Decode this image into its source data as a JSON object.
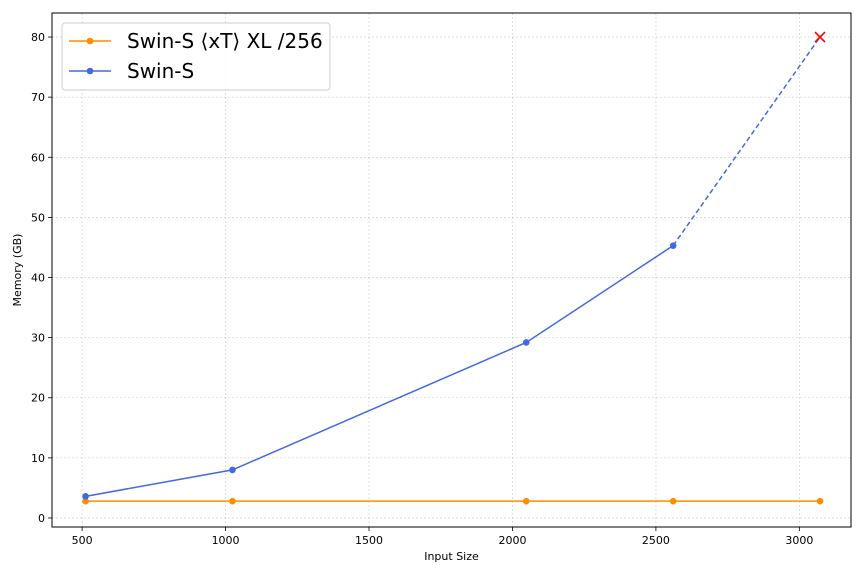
{
  "chart_data": {
    "type": "line",
    "xlabel": "Input Size",
    "ylabel": "Memory (GB)",
    "xlim": [
      395,
      3180
    ],
    "ylim": [
      -1.5,
      84
    ],
    "xticks": [
      500,
      1000,
      1500,
      2000,
      2500,
      3000
    ],
    "yticks": [
      0,
      10,
      20,
      30,
      40,
      50,
      60,
      70,
      80
    ],
    "grid": true,
    "legend_position": "top-left",
    "series": [
      {
        "name": "Swin-S ⟨xT⟩ XL /256",
        "color": "#ff8c00",
        "x": [
          512,
          1024,
          2048,
          2560,
          3072
        ],
        "y": [
          2.8,
          2.8,
          2.8,
          2.8,
          2.8
        ]
      },
      {
        "name": "Swin-S",
        "color": "#4169e1",
        "x": [
          512,
          1024,
          2048,
          2560
        ],
        "y": [
          3.6,
          8.0,
          29.2,
          45.3
        ],
        "extrapolated": {
          "from": [
            2560,
            45.3
          ],
          "to": [
            3072,
            80.0
          ],
          "style": "dashed",
          "end_marker": "x",
          "end_marker_color": "#ff0000"
        }
      }
    ]
  }
}
